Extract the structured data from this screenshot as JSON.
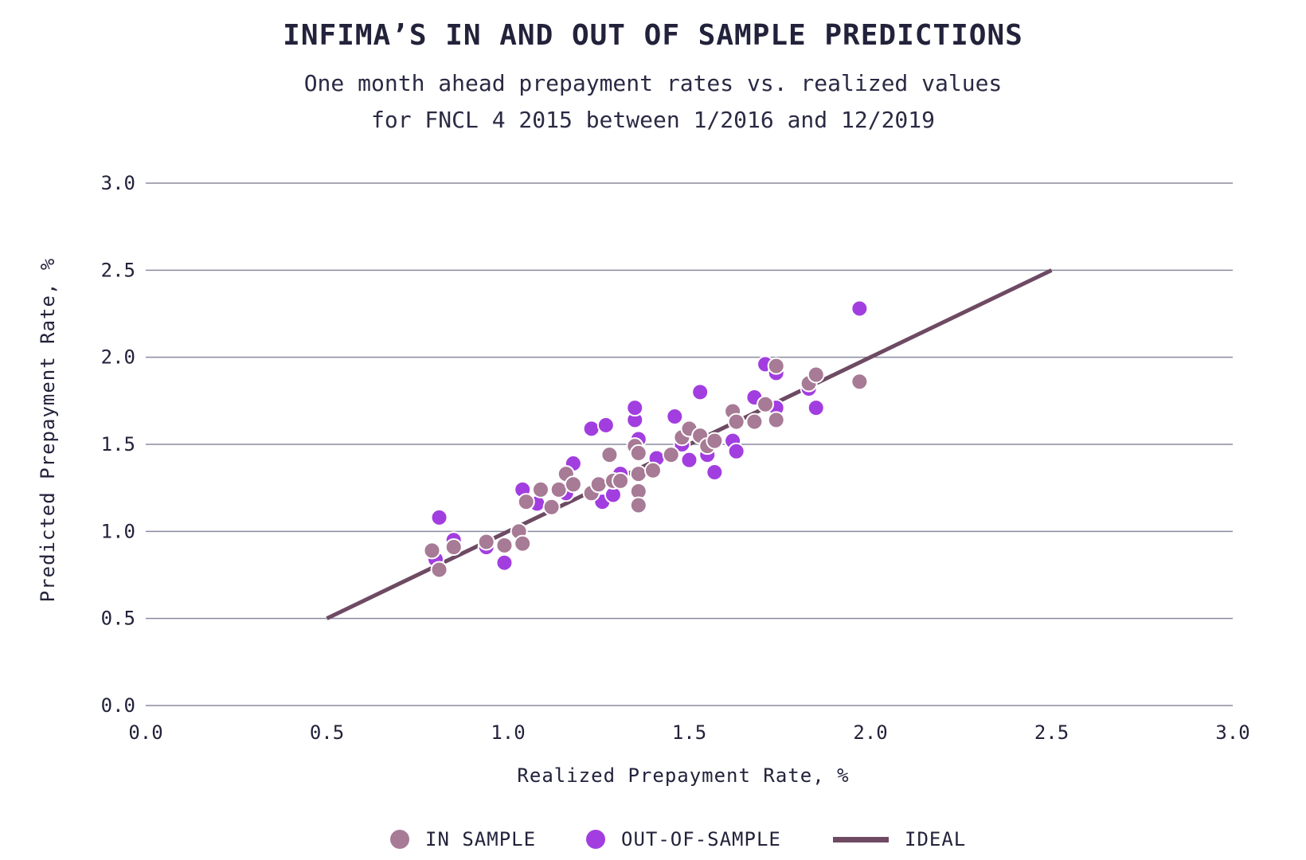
{
  "chart_data": {
    "type": "scatter",
    "title": "INFIMA’S IN AND OUT OF SAMPLE PREDICTIONS",
    "subtitle_lines": [
      "One month ahead prepayment rates vs. realized values",
      "for FNCL 4 2015 between 1/2016 and 12/2019"
    ],
    "xlabel": "Realized Prepayment Rate, %",
    "ylabel": "Predicted Prepayment Rate, %",
    "xlim": [
      0,
      3
    ],
    "ylim": [
      0,
      3
    ],
    "x_ticks": [
      "0.0",
      "0.5",
      "1.0",
      "1.5",
      "2.0",
      "2.5",
      "3.0"
    ],
    "y_ticks": [
      "0.0",
      "0.5",
      "1.0",
      "1.5",
      "2.0",
      "2.5",
      "3.0"
    ],
    "grid": "horizontal",
    "legend_position": "bottom",
    "colors": {
      "in_sample": "#a77a95",
      "out_of_sample": "#a23ee0",
      "ideal": "#6e4a63",
      "grid": "#8a8aa0"
    },
    "series": [
      {
        "name": "OUT-OF-SAMPLE",
        "type": "scatter",
        "points": [
          [
            0.81,
            1.08
          ],
          [
            0.8,
            0.84
          ],
          [
            0.85,
            0.95
          ],
          [
            0.94,
            0.91
          ],
          [
            0.99,
            0.82
          ],
          [
            1.04,
            1.24
          ],
          [
            1.08,
            1.16
          ],
          [
            1.16,
            1.22
          ],
          [
            1.18,
            1.39
          ],
          [
            1.23,
            1.59
          ],
          [
            1.26,
            1.17
          ],
          [
            1.27,
            1.61
          ],
          [
            1.29,
            1.21
          ],
          [
            1.31,
            1.33
          ],
          [
            1.35,
            1.64
          ],
          [
            1.35,
            1.71
          ],
          [
            1.36,
            1.53
          ],
          [
            1.41,
            1.42
          ],
          [
            1.46,
            1.66
          ],
          [
            1.48,
            1.5
          ],
          [
            1.5,
            1.41
          ],
          [
            1.53,
            1.8
          ],
          [
            1.55,
            1.44
          ],
          [
            1.57,
            1.34
          ],
          [
            1.62,
            1.52
          ],
          [
            1.63,
            1.46
          ],
          [
            1.68,
            1.77
          ],
          [
            1.71,
            1.96
          ],
          [
            1.74,
            1.91
          ],
          [
            1.74,
            1.71
          ],
          [
            1.83,
            1.82
          ],
          [
            1.85,
            1.71
          ],
          [
            1.97,
            2.28
          ]
        ]
      },
      {
        "name": "IN SAMPLE",
        "type": "scatter",
        "points": [
          [
            0.79,
            0.89
          ],
          [
            0.81,
            0.78
          ],
          [
            0.85,
            0.91
          ],
          [
            0.94,
            0.94
          ],
          [
            0.99,
            0.92
          ],
          [
            1.03,
            1.0
          ],
          [
            1.04,
            0.93
          ],
          [
            1.05,
            1.17
          ],
          [
            1.09,
            1.24
          ],
          [
            1.12,
            1.14
          ],
          [
            1.14,
            1.24
          ],
          [
            1.16,
            1.33
          ],
          [
            1.18,
            1.27
          ],
          [
            1.23,
            1.22
          ],
          [
            1.25,
            1.27
          ],
          [
            1.28,
            1.44
          ],
          [
            1.29,
            1.29
          ],
          [
            1.31,
            1.29
          ],
          [
            1.35,
            1.49
          ],
          [
            1.36,
            1.45
          ],
          [
            1.36,
            1.33
          ],
          [
            1.36,
            1.23
          ],
          [
            1.36,
            1.15
          ],
          [
            1.4,
            1.35
          ],
          [
            1.45,
            1.44
          ],
          [
            1.48,
            1.54
          ],
          [
            1.5,
            1.59
          ],
          [
            1.53,
            1.55
          ],
          [
            1.55,
            1.49
          ],
          [
            1.57,
            1.52
          ],
          [
            1.62,
            1.69
          ],
          [
            1.63,
            1.63
          ],
          [
            1.68,
            1.63
          ],
          [
            1.71,
            1.73
          ],
          [
            1.74,
            1.64
          ],
          [
            1.74,
            1.95
          ],
          [
            1.83,
            1.85
          ],
          [
            1.85,
            1.9
          ],
          [
            1.97,
            1.86
          ]
        ]
      },
      {
        "name": "IDEAL",
        "type": "line",
        "points": [
          [
            0.5,
            0.5
          ],
          [
            2.5,
            2.5
          ]
        ]
      }
    ]
  }
}
